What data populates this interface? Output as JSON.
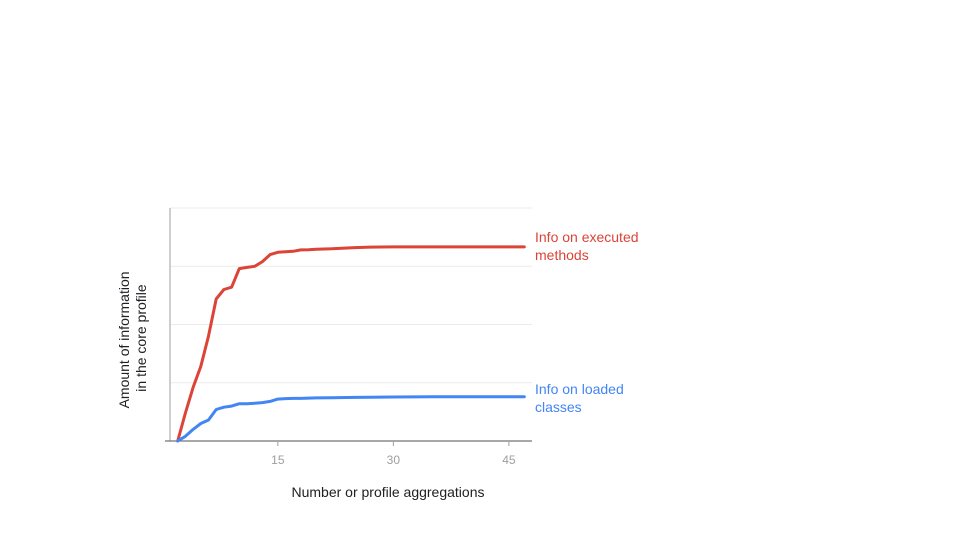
{
  "chart_data": {
    "type": "line",
    "xlabel": "Number or profile aggregations",
    "ylabel": [
      "Amount of information",
      "in the core profile"
    ],
    "xlim": [
      1,
      48
    ],
    "ylim": [
      0,
      100
    ],
    "x_ticks": [
      15,
      30,
      45
    ],
    "grid": true,
    "legend": "right of lines (direct labels)",
    "series": [
      {
        "name": "Info on executed methods",
        "label_lines": [
          "Info on executed methods"
        ],
        "color": "#db4437",
        "x": [
          2,
          3,
          4,
          5,
          6,
          7,
          8,
          9,
          10,
          11,
          12,
          13,
          14,
          15,
          16,
          17,
          18,
          19,
          20,
          22,
          25,
          27,
          30,
          35,
          40,
          45,
          47
        ],
        "y": [
          0,
          12,
          23,
          32,
          45,
          61,
          65,
          66,
          74,
          74.5,
          75,
          77,
          80,
          81,
          81.2,
          81.4,
          82,
          82.1,
          82.3,
          82.5,
          83,
          83.2,
          83.3,
          83.3,
          83.3,
          83.3,
          83.3
        ]
      },
      {
        "name": "Info on loaded classes",
        "label_lines": [
          "Info on loaded classes"
        ],
        "color": "#4285f4",
        "x": [
          2,
          3,
          4,
          5,
          6,
          7,
          8,
          9,
          10,
          11,
          12,
          13,
          14,
          15,
          16,
          17,
          18,
          19,
          20,
          22,
          25,
          27,
          30,
          35,
          40,
          45,
          47
        ],
        "y": [
          0,
          2,
          5,
          7.5,
          9,
          13.5,
          14.5,
          15,
          16,
          16,
          16.2,
          16.5,
          17,
          18,
          18.2,
          18.3,
          18.3,
          18.4,
          18.5,
          18.6,
          18.7,
          18.8,
          18.9,
          19,
          19,
          19,
          19
        ]
      }
    ]
  }
}
